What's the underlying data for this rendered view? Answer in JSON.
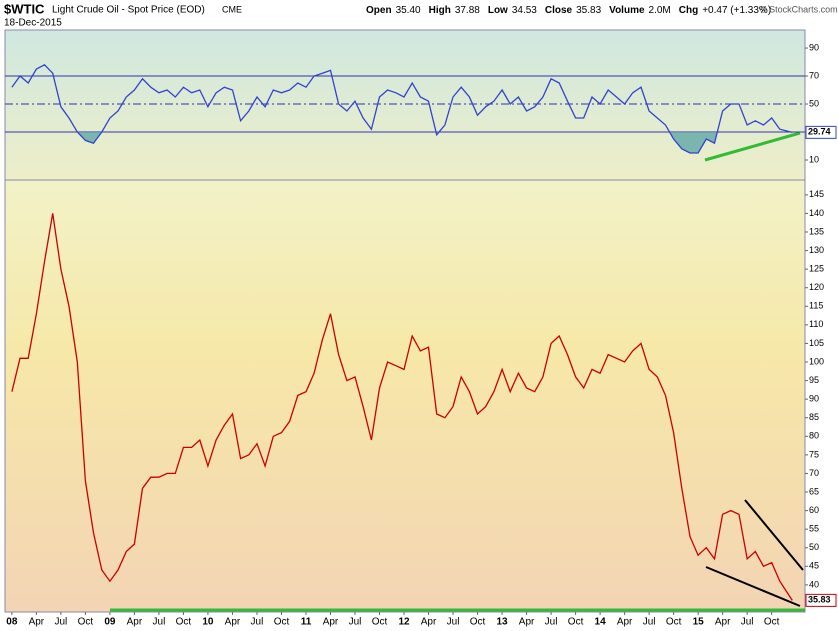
{
  "header": {
    "symbol": "$WTIC",
    "name": "Light Crude Oil - Spot Price (EOD)",
    "exchange": "CME",
    "date": "18-Dec-2015",
    "copyright": "© StockCharts.com",
    "quote": [
      {
        "label": "Open",
        "value": "35.40"
      },
      {
        "label": "High",
        "value": "37.88"
      },
      {
        "label": "Low",
        "value": "34.53"
      },
      {
        "label": "Close",
        "value": "35.83"
      },
      {
        "label": "Volume",
        "value": "2.0M"
      },
      {
        "label": "Chg",
        "value": "+0.47 (+1.33%)"
      }
    ]
  },
  "chart_data": [
    {
      "type": "line",
      "color": "#3344cc",
      "shade_color": "#5fa8a8",
      "xlim": [
        2007.93,
        2016.09
      ],
      "ylim": [
        -4.3,
        102.9
      ],
      "yticks": [
        10,
        50,
        70,
        90
      ],
      "reference_lines": [
        30,
        50,
        70
      ],
      "x": [
        2008.0,
        2008.083,
        2008.167,
        2008.25,
        2008.333,
        2008.417,
        2008.5,
        2008.583,
        2008.667,
        2008.75,
        2008.833,
        2008.917,
        2009.0,
        2009.083,
        2009.167,
        2009.25,
        2009.333,
        2009.417,
        2009.5,
        2009.583,
        2009.667,
        2009.75,
        2009.833,
        2009.917,
        2010.0,
        2010.083,
        2010.167,
        2010.25,
        2010.333,
        2010.417,
        2010.5,
        2010.583,
        2010.667,
        2010.75,
        2010.833,
        2010.917,
        2011.0,
        2011.083,
        2011.167,
        2011.25,
        2011.333,
        2011.417,
        2011.5,
        2011.583,
        2011.667,
        2011.75,
        2011.833,
        2011.917,
        2012.0,
        2012.083,
        2012.167,
        2012.25,
        2012.333,
        2012.417,
        2012.5,
        2012.583,
        2012.667,
        2012.75,
        2012.833,
        2012.917,
        2013.0,
        2013.083,
        2013.167,
        2013.25,
        2013.333,
        2013.417,
        2013.5,
        2013.583,
        2013.667,
        2013.75,
        2013.833,
        2013.917,
        2014.0,
        2014.083,
        2014.167,
        2014.25,
        2014.333,
        2014.417,
        2014.5,
        2014.583,
        2014.667,
        2014.75,
        2014.833,
        2014.917,
        2015.0,
        2015.083,
        2015.167,
        2015.25,
        2015.333,
        2015.417,
        2015.5,
        2015.583,
        2015.667,
        2015.75,
        2015.833,
        2015.96
      ],
      "values": [
        62,
        70,
        65,
        75,
        78,
        72,
        48,
        40,
        30,
        24,
        22,
        30,
        40,
        45,
        55,
        60,
        68,
        62,
        58,
        60,
        55,
        62,
        58,
        60,
        48,
        58,
        62,
        60,
        38,
        45,
        55,
        48,
        60,
        58,
        60,
        65,
        62,
        70,
        72,
        74,
        50,
        45,
        52,
        40,
        32,
        55,
        60,
        58,
        55,
        65,
        55,
        52,
        28,
        35,
        55,
        62,
        55,
        42,
        48,
        52,
        60,
        50,
        55,
        45,
        48,
        55,
        68,
        65,
        52,
        40,
        40,
        55,
        50,
        60,
        55,
        50,
        58,
        62,
        45,
        40,
        35,
        25,
        18,
        15,
        15,
        25,
        22,
        45,
        50,
        50,
        35,
        38,
        35,
        40,
        32,
        29.74
      ]
    },
    {
      "type": "line",
      "color": "#cc0000",
      "xlim": [
        2007.93,
        2016.09
      ],
      "ylim": [
        32.7,
        149
      ],
      "yticks": [
        40,
        45,
        50,
        55,
        60,
        65,
        70,
        75,
        80,
        85,
        90,
        95,
        100,
        105,
        110,
        115,
        120,
        125,
        130,
        135,
        140,
        145
      ],
      "xticks": [
        {
          "value": 2008,
          "label": "08"
        },
        {
          "value": 2008.25,
          "label": "Apr"
        },
        {
          "value": 2008.5,
          "label": "Jul"
        },
        {
          "value": 2008.75,
          "label": "Oct"
        },
        {
          "value": 2009,
          "label": "09"
        },
        {
          "value": 2009.25,
          "label": "Apr"
        },
        {
          "value": 2009.5,
          "label": "Jul"
        },
        {
          "value": 2009.75,
          "label": "Oct"
        },
        {
          "value": 2010,
          "label": "10"
        },
        {
          "value": 2010.25,
          "label": "Apr"
        },
        {
          "value": 2010.5,
          "label": "Jul"
        },
        {
          "value": 2010.75,
          "label": "Oct"
        },
        {
          "value": 2011,
          "label": "11"
        },
        {
          "value": 2011.25,
          "label": "Apr"
        },
        {
          "value": 2011.5,
          "label": "Jul"
        },
        {
          "value": 2011.75,
          "label": "Oct"
        },
        {
          "value": 2012,
          "label": "12"
        },
        {
          "value": 2012.25,
          "label": "Apr"
        },
        {
          "value": 2012.5,
          "label": "Jul"
        },
        {
          "value": 2012.75,
          "label": "Oct"
        },
        {
          "value": 2013,
          "label": "13"
        },
        {
          "value": 2013.25,
          "label": "Apr"
        },
        {
          "value": 2013.5,
          "label": "Jul"
        },
        {
          "value": 2013.75,
          "label": "Oct"
        },
        {
          "value": 2014,
          "label": "14"
        },
        {
          "value": 2014.25,
          "label": "Apr"
        },
        {
          "value": 2014.5,
          "label": "Jul"
        },
        {
          "value": 2014.75,
          "label": "Oct"
        },
        {
          "value": 2015,
          "label": "15"
        },
        {
          "value": 2015.25,
          "label": "Apr"
        },
        {
          "value": 2015.5,
          "label": "Jul"
        },
        {
          "value": 2015.75,
          "label": "Oct"
        }
      ],
      "x": [
        2008.0,
        2008.083,
        2008.167,
        2008.25,
        2008.333,
        2008.417,
        2008.5,
        2008.583,
        2008.667,
        2008.75,
        2008.833,
        2008.917,
        2009.0,
        2009.083,
        2009.167,
        2009.25,
        2009.333,
        2009.417,
        2009.5,
        2009.583,
        2009.667,
        2009.75,
        2009.833,
        2009.917,
        2010.0,
        2010.083,
        2010.167,
        2010.25,
        2010.333,
        2010.417,
        2010.5,
        2010.583,
        2010.667,
        2010.75,
        2010.833,
        2010.917,
        2011.0,
        2011.083,
        2011.167,
        2011.25,
        2011.333,
        2011.417,
        2011.5,
        2011.583,
        2011.667,
        2011.75,
        2011.833,
        2011.917,
        2012.0,
        2012.083,
        2012.167,
        2012.25,
        2012.333,
        2012.417,
        2012.5,
        2012.583,
        2012.667,
        2012.75,
        2012.833,
        2012.917,
        2013.0,
        2013.083,
        2013.167,
        2013.25,
        2013.333,
        2013.417,
        2013.5,
        2013.583,
        2013.667,
        2013.75,
        2013.833,
        2013.917,
        2014.0,
        2014.083,
        2014.167,
        2014.25,
        2014.333,
        2014.417,
        2014.5,
        2014.583,
        2014.667,
        2014.75,
        2014.833,
        2014.917,
        2015.0,
        2015.083,
        2015.167,
        2015.25,
        2015.333,
        2015.417,
        2015.5,
        2015.583,
        2015.667,
        2015.75,
        2015.833,
        2015.96
      ],
      "values": [
        92,
        101,
        101,
        113,
        127,
        140,
        125,
        115,
        100,
        68,
        54,
        44,
        41,
        44,
        49,
        51,
        66,
        69,
        69,
        70,
        70,
        77,
        77,
        79,
        72,
        79,
        83,
        86,
        74,
        75,
        78,
        72,
        80,
        81,
        84,
        91,
        92,
        97,
        106,
        113,
        102,
        95,
        96,
        88,
        79,
        93,
        100,
        99,
        98,
        107,
        103,
        104,
        86,
        85,
        88,
        96,
        92,
        86,
        88,
        92,
        98,
        92,
        97,
        93,
        92,
        96,
        105,
        107,
        102,
        96,
        93,
        98,
        97,
        102,
        101,
        100,
        103,
        105,
        98,
        96,
        91,
        81,
        66,
        53,
        48,
        50,
        47,
        59,
        60,
        59,
        47,
        49,
        45,
        46,
        41,
        35.83
      ]
    }
  ]
}
